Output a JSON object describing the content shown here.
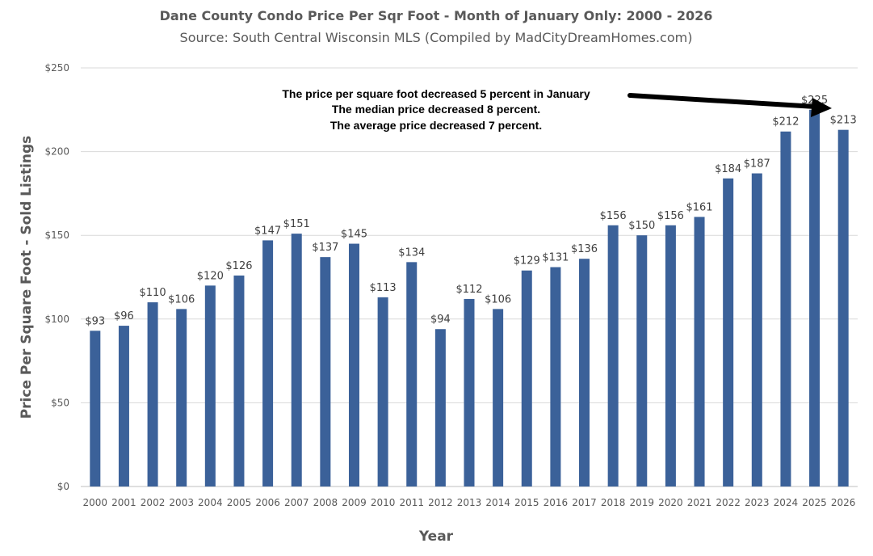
{
  "chart_data": {
    "type": "bar",
    "title": "Dane County Condo Price Per Sqr Foot - Month of January Only: 2000 - 2026",
    "subtitle": "Source: South Central Wisconsin MLS (Compiled by MadCityDreamHomes.com)",
    "xlabel": "Year",
    "ylabel": "Price Per Square Foot - Sold Listings",
    "ylim": [
      0,
      250
    ],
    "yticks": [
      "$0",
      "$50",
      "$100",
      "$150",
      "$200",
      "$250"
    ],
    "ytick_values": [
      0,
      50,
      100,
      150,
      200,
      250
    ],
    "grid": true,
    "bar_color": "#3b6199",
    "categories": [
      "2000",
      "2001",
      "2002",
      "2003",
      "2004",
      "2005",
      "2006",
      "2007",
      "2008",
      "2009",
      "2010",
      "2011",
      "2012",
      "2013",
      "2014",
      "2015",
      "2016",
      "2017",
      "2018",
      "2019",
      "2020",
      "2021",
      "2022",
      "2023",
      "2024",
      "2025",
      "2026"
    ],
    "values": [
      93,
      96,
      110,
      106,
      120,
      126,
      147,
      151,
      137,
      145,
      113,
      134,
      94,
      112,
      106,
      129,
      131,
      136,
      156,
      150,
      156,
      161,
      184,
      187,
      212,
      225,
      213
    ],
    "data_labels": [
      "$93",
      "$96",
      "$110",
      "$106",
      "$120",
      "$126",
      "$147",
      "$151",
      "$137",
      "$145",
      "$113",
      "$134",
      "$94",
      "$112",
      "$106",
      "$129",
      "$131",
      "$136",
      "$156",
      "$150",
      "$156",
      "$161",
      "$184",
      "$187",
      "$212",
      "$225",
      "$213"
    ],
    "annotation": {
      "lines": [
        "The price per square foot decreased 5 percent in January",
        "The median price decreased 8 percent.",
        "The average price decreased 7 percent."
      ],
      "arrow_target": "2025"
    }
  }
}
